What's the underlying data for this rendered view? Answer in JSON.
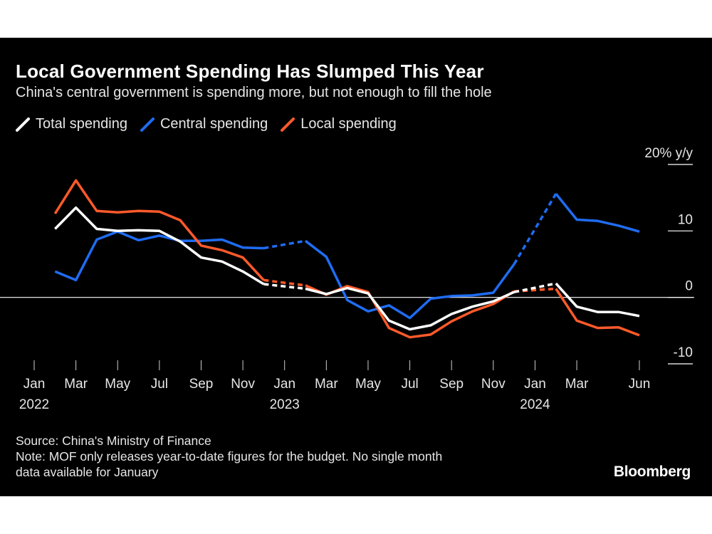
{
  "title": "Local Government Spending Has Slumped This Year",
  "subtitle": "China's central government is spending more, but not enough to fill the hole",
  "source": "Source: China's Ministry of Finance",
  "note_line1": "Note: MOF only releases year-to-date figures for the budget. No single month",
  "note_line2": "data available for January",
  "brand": "Bloomberg",
  "colors": {
    "background": "#000000",
    "text": "#ffffff",
    "total": "#ffffff",
    "central": "#1f6cf2",
    "local": "#ff5a2a"
  },
  "chart_data": {
    "type": "line",
    "title": "Local Government Spending Has Slumped This Year",
    "subtitle": "China's central government is spending more, but not enough to fill the hole",
    "ylabel": "",
    "y_unit_label": "20% y/y",
    "ylim": [
      -10,
      20
    ],
    "y_ticks": [
      {
        "value": 20,
        "label": "20% y/y"
      },
      {
        "value": 10,
        "label": "10"
      },
      {
        "value": 0,
        "label": "0"
      },
      {
        "value": -10,
        "label": "-10"
      }
    ],
    "x_ticks": [
      {
        "date": "2022-01",
        "month": "Jan",
        "year": "2022"
      },
      {
        "date": "2022-03",
        "month": "Mar",
        "year": ""
      },
      {
        "date": "2022-05",
        "month": "May",
        "year": ""
      },
      {
        "date": "2022-07",
        "month": "Jul",
        "year": ""
      },
      {
        "date": "2022-09",
        "month": "Sep",
        "year": ""
      },
      {
        "date": "2022-11",
        "month": "Nov",
        "year": ""
      },
      {
        "date": "2023-01",
        "month": "Jan",
        "year": "2023"
      },
      {
        "date": "2023-03",
        "month": "Mar",
        "year": ""
      },
      {
        "date": "2023-05",
        "month": "May",
        "year": ""
      },
      {
        "date": "2023-07",
        "month": "Jul",
        "year": ""
      },
      {
        "date": "2023-09",
        "month": "Sep",
        "year": ""
      },
      {
        "date": "2023-11",
        "month": "Nov",
        "year": ""
      },
      {
        "date": "2024-01",
        "month": "Jan",
        "year": "2024"
      },
      {
        "date": "2024-03",
        "month": "Mar",
        "year": ""
      },
      {
        "date": "2024-06",
        "month": "Jun",
        "year": ""
      }
    ],
    "grid": false,
    "zero_line": true,
    "legend_position": "top-left",
    "dashed_segments": "lines are dashed across January (no single-month data)",
    "series": [
      {
        "name": "Total spending",
        "color": "#ffffff",
        "segments": [
          {
            "style": "solid",
            "points": [
              [
                "2022-02",
                10.3
              ],
              [
                "2022-03",
                13.5
              ],
              [
                "2022-04",
                10.3
              ],
              [
                "2022-05",
                10.0
              ],
              [
                "2022-06",
                10.1
              ],
              [
                "2022-07",
                10.0
              ],
              [
                "2022-08",
                8.4
              ],
              [
                "2022-09",
                6.0
              ],
              [
                "2022-10",
                5.4
              ],
              [
                "2022-11",
                3.9
              ],
              [
                "2022-12",
                2.0
              ]
            ]
          },
          {
            "style": "dashed",
            "points": [
              [
                "2022-12",
                2.0
              ],
              [
                "2023-02",
                1.3
              ]
            ]
          },
          {
            "style": "solid",
            "points": [
              [
                "2023-02",
                1.3
              ],
              [
                "2023-03",
                0.5
              ],
              [
                "2023-04",
                1.4
              ],
              [
                "2023-05",
                0.6
              ],
              [
                "2023-06",
                -3.5
              ],
              [
                "2023-07",
                -4.8
              ],
              [
                "2023-08",
                -4.2
              ],
              [
                "2023-09",
                -2.5
              ],
              [
                "2023-10",
                -1.4
              ],
              [
                "2023-11",
                -0.6
              ],
              [
                "2023-12",
                0.8
              ]
            ]
          },
          {
            "style": "dashed",
            "points": [
              [
                "2023-12",
                0.8
              ],
              [
                "2024-02",
                2.1
              ]
            ]
          },
          {
            "style": "solid",
            "points": [
              [
                "2024-02",
                2.1
              ],
              [
                "2024-03",
                -1.4
              ],
              [
                "2024-04",
                -2.2
              ],
              [
                "2024-05",
                -2.2
              ],
              [
                "2024-06",
                -2.8
              ]
            ]
          }
        ]
      },
      {
        "name": "Central spending",
        "color": "#1f6cf2",
        "segments": [
          {
            "style": "solid",
            "points": [
              [
                "2022-02",
                3.9
              ],
              [
                "2022-03",
                2.6
              ],
              [
                "2022-04",
                8.7
              ],
              [
                "2022-05",
                9.9
              ],
              [
                "2022-06",
                8.6
              ],
              [
                "2022-07",
                9.3
              ],
              [
                "2022-08",
                8.5
              ],
              [
                "2022-09",
                8.5
              ],
              [
                "2022-10",
                8.7
              ],
              [
                "2022-11",
                7.5
              ],
              [
                "2022-12",
                7.4
              ]
            ]
          },
          {
            "style": "dashed",
            "points": [
              [
                "2022-12",
                7.4
              ],
              [
                "2023-02",
                8.5
              ]
            ]
          },
          {
            "style": "solid",
            "points": [
              [
                "2023-02",
                8.5
              ],
              [
                "2023-03",
                6.1
              ],
              [
                "2023-04",
                -0.4
              ],
              [
                "2023-05",
                -2.1
              ],
              [
                "2023-06",
                -1.2
              ],
              [
                "2023-07",
                -3.1
              ],
              [
                "2023-08",
                -0.2
              ],
              [
                "2023-09",
                0.2
              ],
              [
                "2023-10",
                0.3
              ],
              [
                "2023-11",
                0.7
              ],
              [
                "2023-12",
                5.0
              ]
            ]
          },
          {
            "style": "dashed",
            "points": [
              [
                "2023-12",
                5.0
              ],
              [
                "2024-02",
                15.6
              ]
            ]
          },
          {
            "style": "solid",
            "points": [
              [
                "2024-02",
                15.6
              ],
              [
                "2024-03",
                11.7
              ],
              [
                "2024-04",
                11.5
              ],
              [
                "2024-05",
                10.8
              ],
              [
                "2024-06",
                9.9
              ]
            ]
          }
        ]
      },
      {
        "name": "Local spending",
        "color": "#ff5a2a",
        "segments": [
          {
            "style": "solid",
            "points": [
              [
                "2022-02",
                12.6
              ],
              [
                "2022-03",
                17.6
              ],
              [
                "2022-04",
                13.0
              ],
              [
                "2022-05",
                12.8
              ],
              [
                "2022-06",
                13.0
              ],
              [
                "2022-07",
                12.9
              ],
              [
                "2022-08",
                11.6
              ],
              [
                "2022-09",
                7.8
              ],
              [
                "2022-10",
                7.1
              ],
              [
                "2022-11",
                6.0
              ],
              [
                "2022-12",
                2.6
              ]
            ]
          },
          {
            "style": "dashed",
            "points": [
              [
                "2022-12",
                2.6
              ],
              [
                "2023-02",
                1.8
              ]
            ]
          },
          {
            "style": "solid",
            "points": [
              [
                "2023-02",
                1.8
              ],
              [
                "2023-03",
                0.4
              ],
              [
                "2023-04",
                1.7
              ],
              [
                "2023-05",
                0.8
              ],
              [
                "2023-06",
                -4.6
              ],
              [
                "2023-07",
                -6.0
              ],
              [
                "2023-08",
                -5.6
              ],
              [
                "2023-09",
                -3.6
              ],
              [
                "2023-10",
                -2.1
              ],
              [
                "2023-11",
                -1.0
              ],
              [
                "2023-12",
                0.9
              ]
            ]
          },
          {
            "style": "dashed",
            "points": [
              [
                "2023-12",
                0.9
              ],
              [
                "2024-02",
                1.3
              ]
            ]
          },
          {
            "style": "solid",
            "points": [
              [
                "2024-02",
                1.3
              ],
              [
                "2024-03",
                -3.5
              ],
              [
                "2024-04",
                -4.6
              ],
              [
                "2024-05",
                -4.5
              ],
              [
                "2024-06",
                -5.7
              ]
            ]
          }
        ]
      }
    ]
  }
}
